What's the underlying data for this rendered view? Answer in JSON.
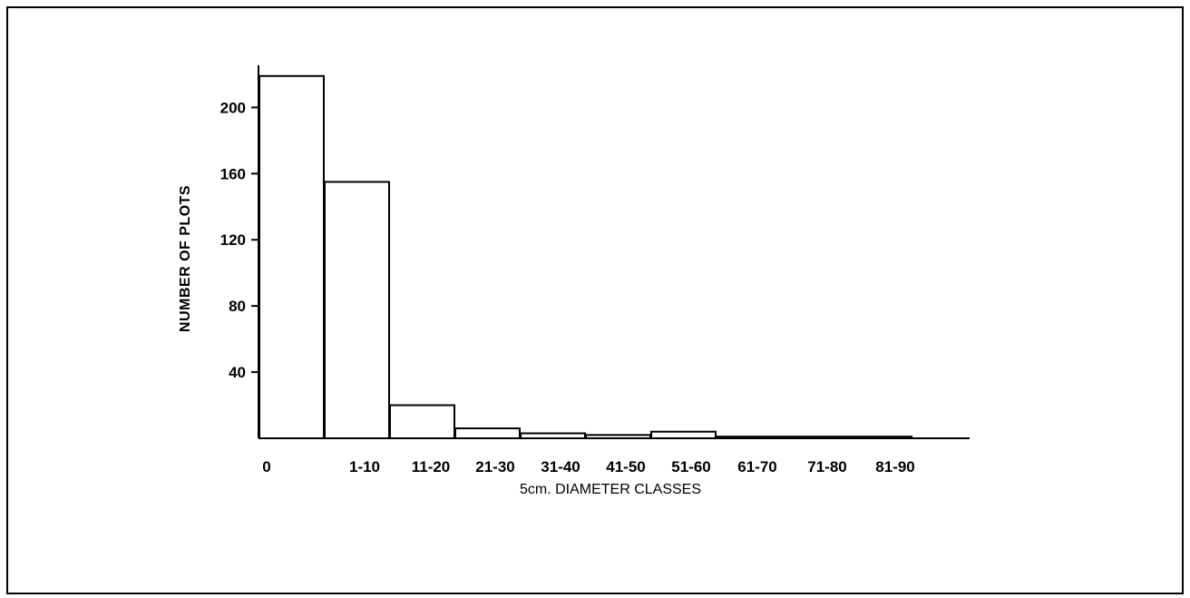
{
  "chart_data": {
    "type": "bar",
    "title": "",
    "xlabel": "5cm. DIAMETER CLASSES",
    "ylabel": "NUMBER OF PLOTS",
    "categories": [
      "0",
      "1-10",
      "11-20",
      "21-30",
      "31-40",
      "41-50",
      "51-60",
      "61-70",
      "71-80",
      "81-90"
    ],
    "values": [
      219,
      155,
      20,
      6,
      3,
      2,
      4,
      1,
      1,
      1
    ],
    "yticks": [
      40,
      80,
      120,
      160,
      200
    ],
    "ylim": [
      0,
      220
    ],
    "grid": false,
    "legend": "none",
    "colors": {
      "bar_fill": "#ffffff",
      "bar_stroke": "#000000",
      "axis": "#000000"
    }
  }
}
